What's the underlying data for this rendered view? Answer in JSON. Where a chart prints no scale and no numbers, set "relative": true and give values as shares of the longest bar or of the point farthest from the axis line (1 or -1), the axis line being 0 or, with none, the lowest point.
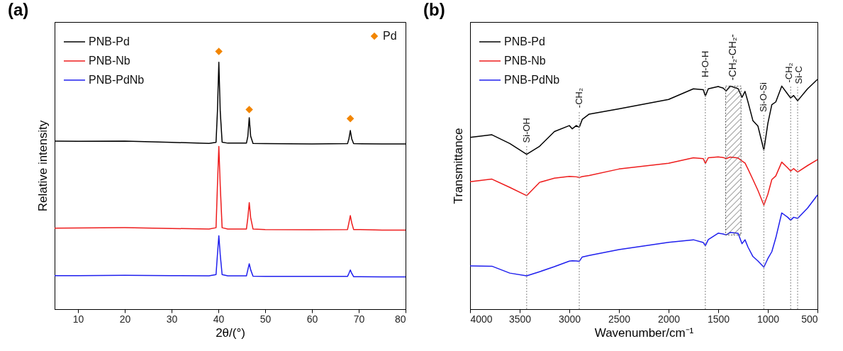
{
  "chart_data": [
    {
      "type": "line",
      "title": "(a)",
      "xlabel": "2θ/(°)",
      "ylabel": "Relative intensity",
      "relative": true,
      "legend": "top left",
      "xlim": [
        5,
        80
      ],
      "xticks": [
        10,
        20,
        30,
        40,
        50,
        60,
        70,
        80
      ],
      "x": [
        5,
        10,
        20,
        30,
        38,
        39.5,
        39.8,
        40.1,
        40.4,
        40.8,
        42,
        46,
        46.3,
        46.6,
        46.9,
        47.4,
        50,
        60,
        67.6,
        67.9,
        68.2,
        68.5,
        68.9,
        75,
        80
      ],
      "series": [
        {
          "name": "PNB-Pd",
          "color": "#000000",
          "values": [
            0.652,
            0.651,
            0.652,
            0.647,
            0.643,
            0.647,
            0.767,
            0.958,
            0.767,
            0.648,
            0.644,
            0.644,
            0.671,
            0.743,
            0.671,
            0.643,
            0.642,
            0.641,
            0.642,
            0.661,
            0.693,
            0.661,
            0.642,
            0.641,
            0.641
          ]
        },
        {
          "name": "PNB-Nb",
          "color": "#ee1c1c",
          "values": [
            0.314,
            0.315,
            0.316,
            0.313,
            0.311,
            0.316,
            0.479,
            0.631,
            0.479,
            0.316,
            0.311,
            0.311,
            0.355,
            0.413,
            0.355,
            0.311,
            0.309,
            0.308,
            0.309,
            0.335,
            0.363,
            0.335,
            0.309,
            0.307,
            0.307
          ]
        },
        {
          "name": "PNB-PdNb",
          "color": "#1f1fee",
          "values": [
            0.13,
            0.13,
            0.131,
            0.13,
            0.129,
            0.134,
            0.211,
            0.285,
            0.211,
            0.134,
            0.129,
            0.129,
            0.153,
            0.176,
            0.153,
            0.128,
            0.127,
            0.127,
            0.127,
            0.139,
            0.152,
            0.139,
            0.126,
            0.125,
            0.125
          ]
        },
        {
          "name": "Pd",
          "type": "scatter",
          "marker": "diamond",
          "color": "#f28500",
          "x": [
            40.1,
            46.6,
            68.2
          ],
          "values": [
            1.0,
            0.774,
            0.739
          ]
        }
      ]
    },
    {
      "type": "line",
      "title": "(b)",
      "xlabel": "Wavenumber/cm⁻¹",
      "ylabel": "Transmittance",
      "relative": true,
      "legend": "top left",
      "xlim": [
        4000,
        500
      ],
      "xticks": [
        4000,
        3500,
        3000,
        2500,
        2000,
        1500,
        1000,
        500
      ],
      "x": [
        4000,
        3780,
        3600,
        3430,
        3300,
        3150,
        3000,
        2970,
        2930,
        2900,
        2870,
        2800,
        2500,
        2000,
        1750,
        1650,
        1630,
        1600,
        1500,
        1450,
        1420,
        1380,
        1300,
        1260,
        1230,
        1200,
        1150,
        1100,
        1040,
        1000,
        960,
        920,
        860,
        800,
        770,
        740,
        700,
        600,
        500
      ],
      "series": [
        {
          "name": "PNB-Pd",
          "color": "#000000",
          "values": [
            0.748,
            0.759,
            0.721,
            0.674,
            0.709,
            0.773,
            0.799,
            0.785,
            0.799,
            0.791,
            0.826,
            0.849,
            0.872,
            0.913,
            0.959,
            0.955,
            0.927,
            0.959,
            0.969,
            0.962,
            0.95,
            0.971,
            0.96,
            0.922,
            0.948,
            0.902,
            0.82,
            0.797,
            0.692,
            0.808,
            0.89,
            0.902,
            0.971,
            0.936,
            0.919,
            0.93,
            0.907,
            0.959,
            1.0
          ]
        },
        {
          "name": "PNB-Nb",
          "color": "#ee1c1c",
          "values": [
            0.555,
            0.566,
            0.53,
            0.494,
            0.552,
            0.57,
            0.578,
            0.577,
            0.576,
            0.573,
            0.577,
            0.582,
            0.61,
            0.635,
            0.659,
            0.655,
            0.634,
            0.659,
            0.663,
            0.66,
            0.655,
            0.662,
            0.658,
            0.645,
            0.636,
            0.61,
            0.564,
            0.517,
            0.453,
            0.5,
            0.564,
            0.58,
            0.64,
            0.615,
            0.601,
            0.612,
            0.597,
            0.625,
            0.651
          ]
        },
        {
          "name": "PNB-PdNb",
          "color": "#1f1fee",
          "values": [
            0.188,
            0.187,
            0.157,
            0.145,
            0.163,
            0.185,
            0.209,
            0.211,
            0.21,
            0.208,
            0.227,
            0.234,
            0.259,
            0.291,
            0.302,
            0.29,
            0.276,
            0.303,
            0.331,
            0.327,
            0.323,
            0.334,
            0.33,
            0.285,
            0.302,
            0.27,
            0.229,
            0.21,
            0.183,
            0.22,
            0.25,
            0.31,
            0.419,
            0.4,
            0.387,
            0.4,
            0.395,
            0.44,
            0.497
          ]
        }
      ],
      "ref_lines": [
        {
          "axis": "x",
          "value": 3430,
          "label": "Si-OH",
          "color": "#999999",
          "line_style": "dotted"
        },
        {
          "axis": "x",
          "value": 2900,
          "label": "-CH₂",
          "color": "#999999",
          "line_style": "dotted"
        },
        {
          "axis": "x",
          "value": 1630,
          "label": "H-O-H",
          "color": "#999999",
          "line_style": "dotted"
        },
        {
          "axis": "x",
          "value": 1040,
          "label": "Si-O-Si",
          "color": "#999999",
          "line_style": "dotted"
        },
        {
          "axis": "x",
          "value": 770,
          "label": "-CH₂",
          "color": "#999999",
          "line_style": "dotted"
        },
        {
          "axis": "x",
          "value": 700,
          "label": "Si-C",
          "color": "#999999",
          "line_style": "dotted"
        }
      ],
      "bands": [
        {
          "axis": "x",
          "from": 1425,
          "to": 1270,
          "label": "-CH₂-CH₂-",
          "color": "#555555"
        }
      ]
    }
  ]
}
